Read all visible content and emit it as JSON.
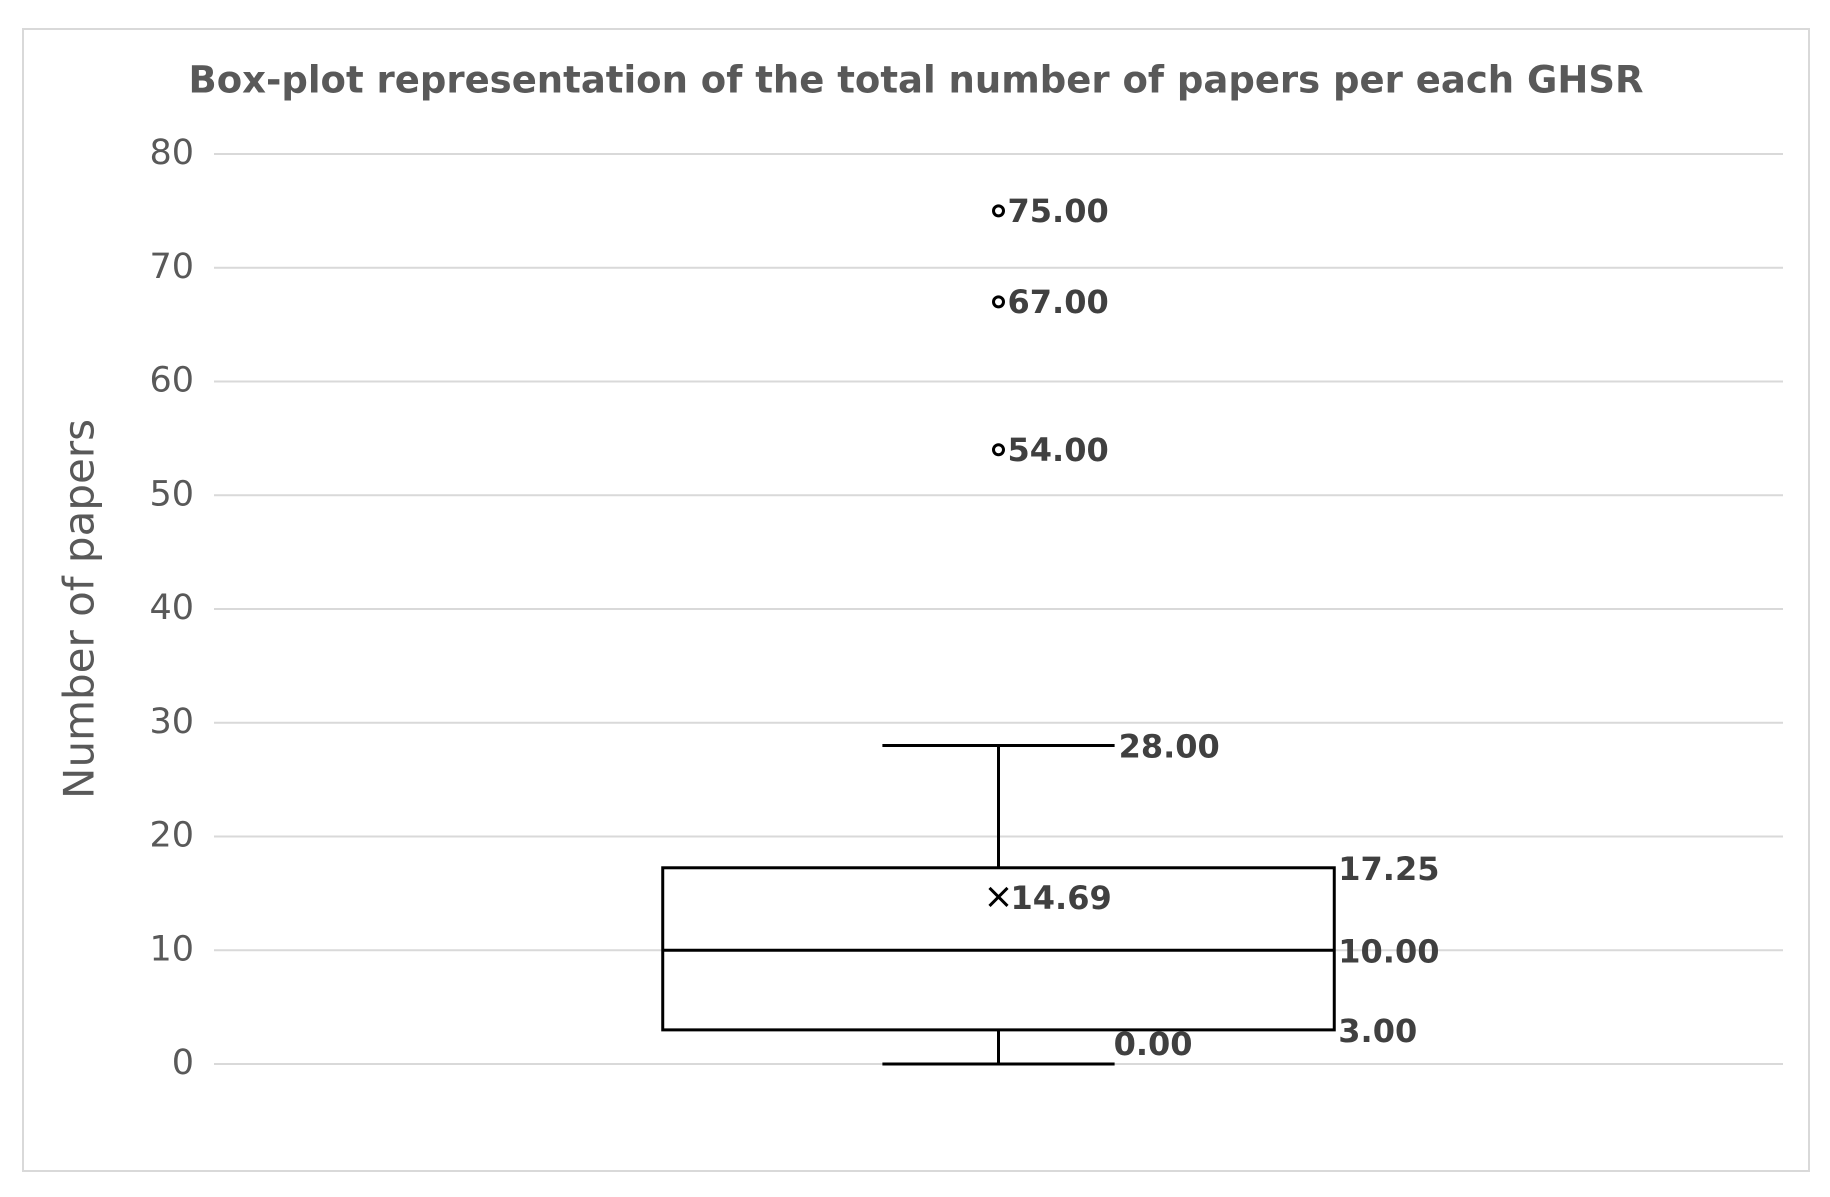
{
  "chart_data": {
    "type": "box",
    "title": "Box-plot representation of the total number of papers per each GHSR",
    "y_label": "Number of papers",
    "ylim": [
      0,
      80
    ],
    "yticks": [
      0,
      10,
      20,
      30,
      40,
      50,
      60,
      70,
      80
    ],
    "grid": true,
    "color": "#000000",
    "boxes": [
      {
        "min": 0,
        "q1": 3,
        "median": 10,
        "q3": 17.25,
        "max": 28,
        "mean": 14.69,
        "outliers": [
          54,
          67,
          75
        ],
        "value_labels": {
          "min": "0.00",
          "q1": "3.00",
          "median": "10.00",
          "q3": "17.25",
          "max": "28.00",
          "mean": "14.69",
          "outliers": [
            "54.00",
            "67.00",
            "75.00"
          ]
        }
      }
    ]
  }
}
